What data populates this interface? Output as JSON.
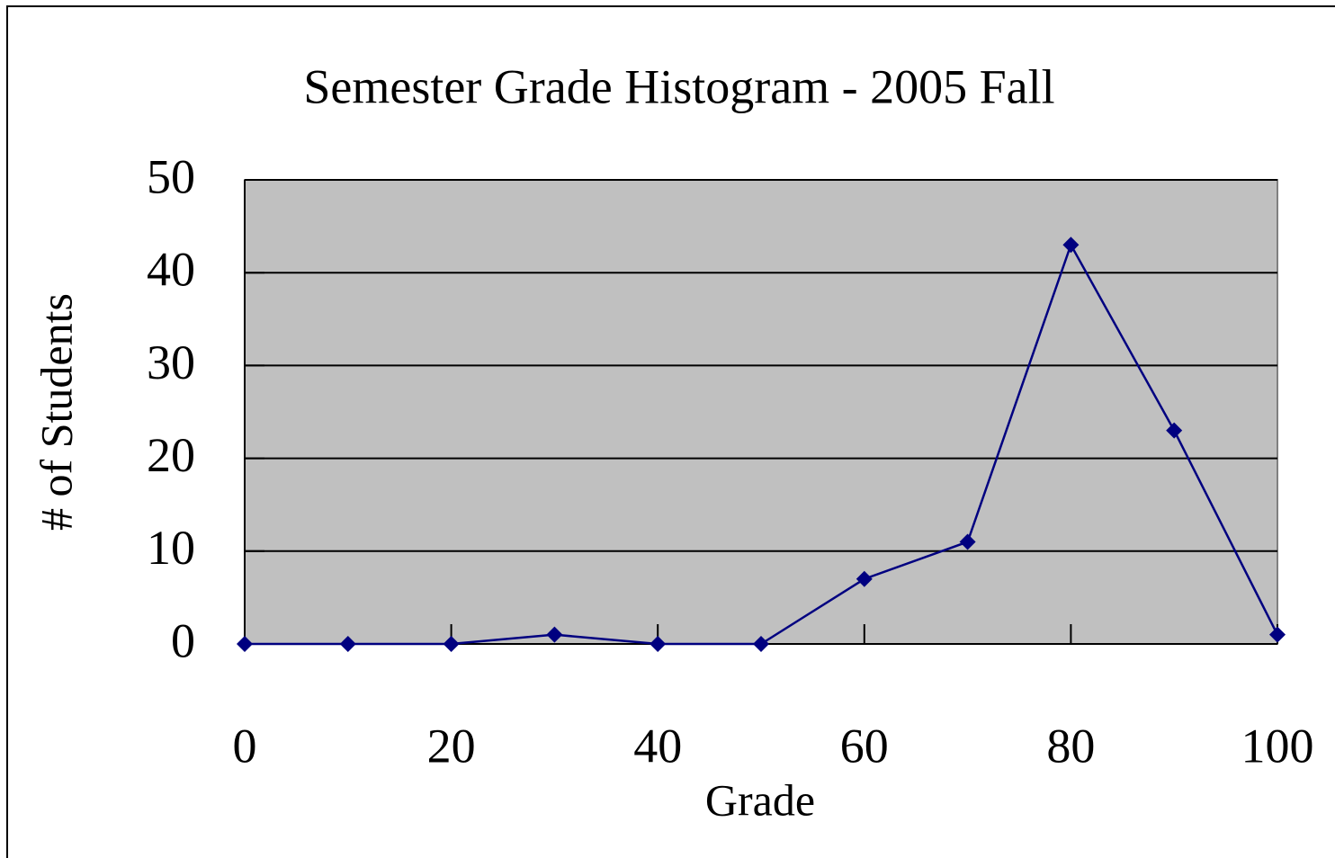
{
  "chart_data": {
    "type": "line",
    "title": "Semester Grade Histogram - 2005 Fall",
    "x_label": "Grade",
    "y_label": "# of Students",
    "x": [
      0,
      10,
      20,
      30,
      40,
      50,
      60,
      70,
      80,
      90,
      100
    ],
    "series": [
      {
        "name": "Students",
        "color": "#000080",
        "values": [
          0,
          0,
          0,
          1,
          0,
          0,
          7,
          11,
          43,
          23,
          1
        ]
      }
    ],
    "xlim": [
      0,
      100
    ],
    "xticks": [
      0,
      20,
      40,
      60,
      80,
      100
    ],
    "ylim": [
      0,
      50
    ],
    "yticks": [
      0,
      10,
      20,
      30,
      40,
      50
    ],
    "grid": true,
    "plot_background": "#c0c0c0"
  }
}
